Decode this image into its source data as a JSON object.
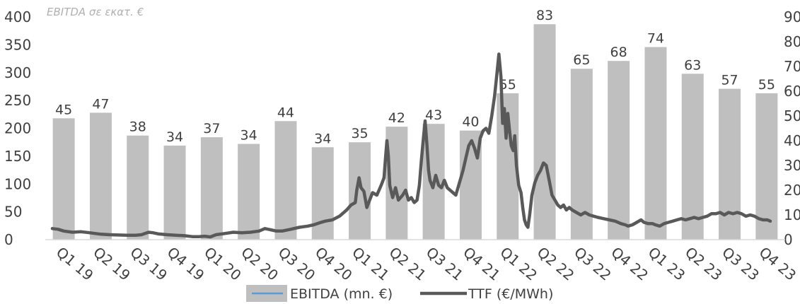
{
  "chart_data": {
    "type": "bar+line",
    "note": "EBITDA σε εκατ. €",
    "categories": [
      "Q1 19",
      "Q2 19",
      "Q3 19",
      "Q4 19",
      "Q1 20",
      "Q2 20",
      "Q3 20",
      "Q4 20",
      "Q1 21",
      "Q2 21",
      "Q3 21",
      "Q4 21",
      "Q1 22",
      "Q2 22",
      "Q3 22",
      "Q4 22",
      "Q1 23",
      "Q2 23",
      "Q3 23",
      "Q4 23"
    ],
    "left_axis": {
      "min": 0,
      "max": 400,
      "ticks": [
        "0",
        "50",
        "100",
        "150",
        "200",
        "250",
        "300",
        "350",
        "400"
      ]
    },
    "right_axis": {
      "min": 0,
      "max": 90,
      "ticks": [
        "0",
        "10",
        "20",
        "30",
        "40",
        "50",
        "60",
        "70",
        "80",
        "90"
      ]
    },
    "series": [
      {
        "name": "EBITDA (mn. €)",
        "kind": "bar",
        "axis": "left",
        "values": [
          218,
          228,
          187,
          169,
          184,
          172,
          213,
          166,
          175,
          203,
          208,
          196,
          263,
          387,
          307,
          321,
          346,
          298,
          271,
          263
        ],
        "labels": [
          "45",
          "47",
          "38",
          "34",
          "37",
          "34",
          "44",
          "34",
          "35",
          "42",
          "43",
          "40",
          "55",
          "83",
          "65",
          "68",
          "74",
          "63",
          "57",
          "55"
        ],
        "color": "#bfbfbf"
      },
      {
        "name": "TTF (€/MWh)",
        "kind": "line",
        "axis": "right",
        "color": "#595959",
        "points": [
          [
            0.0,
            4.5
          ],
          [
            0.2,
            4.2
          ],
          [
            0.4,
            3.5
          ],
          [
            0.7,
            3.0
          ],
          [
            1.0,
            3.2
          ],
          [
            1.3,
            2.8
          ],
          [
            1.5,
            2.5
          ],
          [
            1.7,
            2.2
          ],
          [
            2.0,
            2.0
          ],
          [
            2.3,
            1.9
          ],
          [
            2.6,
            1.8
          ],
          [
            2.9,
            1.8
          ],
          [
            3.1,
            2.0
          ],
          [
            3.35,
            3.0
          ],
          [
            3.5,
            2.8
          ],
          [
            3.7,
            2.3
          ],
          [
            4.0,
            2.0
          ],
          [
            4.3,
            1.8
          ],
          [
            4.6,
            1.6
          ],
          [
            4.9,
            1.2
          ],
          [
            5.1,
            1.2
          ],
          [
            5.3,
            1.4
          ],
          [
            5.5,
            1.1
          ],
          [
            5.7,
            2.0
          ],
          [
            6.0,
            2.5
          ],
          [
            6.3,
            3.0
          ],
          [
            6.6,
            2.8
          ],
          [
            6.9,
            3.0
          ],
          [
            7.2,
            3.5
          ],
          [
            7.4,
            4.5
          ],
          [
            7.6,
            4.0
          ],
          [
            7.8,
            3.5
          ],
          [
            8.0,
            3.5
          ],
          [
            8.3,
            4.2
          ],
          [
            8.6,
            5.0
          ],
          [
            8.9,
            5.5
          ],
          [
            9.1,
            6.0
          ],
          [
            9.3,
            6.8
          ],
          [
            9.5,
            7.5
          ],
          [
            9.75,
            8.0
          ],
          [
            10.0,
            9.5
          ],
          [
            10.25,
            12.0
          ],
          [
            10.4,
            14.0
          ],
          [
            10.55,
            15.0
          ],
          [
            10.6,
            20.0
          ],
          [
            10.68,
            25.0
          ],
          [
            10.75,
            21.0
          ],
          [
            10.85,
            19.5
          ],
          [
            10.95,
            13.0
          ],
          [
            11.05,
            16.0
          ],
          [
            11.15,
            19.0
          ],
          [
            11.3,
            18.0
          ],
          [
            11.45,
            22.0
          ],
          [
            11.55,
            25.0
          ],
          [
            11.6,
            33.0
          ],
          [
            11.65,
            40.0
          ],
          [
            11.7,
            34.0
          ],
          [
            11.75,
            22.0
          ],
          [
            11.85,
            17.0
          ],
          [
            11.95,
            21.0
          ],
          [
            12.05,
            16.0
          ],
          [
            12.2,
            18.0
          ],
          [
            12.3,
            20.0
          ],
          [
            12.4,
            16.0
          ],
          [
            12.5,
            17.0
          ],
          [
            12.6,
            15.0
          ],
          [
            12.7,
            16.0
          ],
          [
            12.78,
            22.0
          ],
          [
            12.85,
            32.0
          ],
          [
            12.92,
            41.0
          ],
          [
            12.98,
            48.0
          ],
          [
            13.04,
            39.0
          ],
          [
            13.1,
            28.0
          ],
          [
            13.15,
            24.0
          ],
          [
            13.25,
            21.0
          ],
          [
            13.35,
            26.0
          ],
          [
            13.45,
            22.0
          ],
          [
            13.55,
            21.0
          ],
          [
            13.65,
            24.0
          ],
          [
            13.75,
            21.0
          ],
          [
            13.85,
            20.0
          ],
          [
            13.95,
            19.0
          ],
          [
            14.05,
            18.0
          ],
          [
            14.15,
            22.0
          ],
          [
            14.3,
            28.0
          ],
          [
            14.4,
            33.0
          ],
          [
            14.5,
            38.0
          ],
          [
            14.6,
            40.0
          ],
          [
            14.7,
            37.0
          ],
          [
            14.8,
            33.0
          ],
          [
            14.9,
            41.0
          ],
          [
            15.0,
            44.0
          ],
          [
            15.1,
            45.0
          ],
          [
            15.2,
            43.0
          ],
          [
            15.3,
            50.0
          ],
          [
            15.4,
            58.0
          ],
          [
            15.48,
            67.0
          ],
          [
            15.55,
            75.0
          ],
          [
            15.62,
            66.0
          ],
          [
            15.68,
            47.0
          ],
          [
            15.74,
            53.0
          ],
          [
            15.8,
            41.0
          ],
          [
            15.86,
            51.0
          ],
          [
            15.92,
            44.0
          ],
          [
            15.98,
            38.0
          ],
          [
            16.05,
            36.0
          ],
          [
            16.1,
            42.0
          ],
          [
            16.16,
            30.0
          ],
          [
            16.24,
            22.0
          ],
          [
            16.32,
            19.0
          ],
          [
            16.38,
            13.0
          ],
          [
            16.44,
            8.0
          ],
          [
            16.5,
            6.0
          ],
          [
            16.56,
            5.0
          ],
          [
            16.62,
            10.0
          ],
          [
            16.7,
            18.0
          ],
          [
            16.8,
            23.0
          ],
          [
            16.9,
            26.0
          ],
          [
            17.0,
            28.0
          ],
          [
            17.1,
            31.0
          ],
          [
            17.2,
            30.0
          ],
          [
            17.3,
            24.0
          ],
          [
            17.4,
            18.0
          ],
          [
            17.5,
            16.0
          ],
          [
            17.6,
            14.0
          ],
          [
            17.7,
            13.0
          ],
          [
            17.8,
            14.0
          ],
          [
            17.9,
            12.0
          ],
          [
            18.0,
            13.0
          ],
          [
            18.1,
            12.0
          ],
          [
            18.25,
            11.0
          ],
          [
            18.4,
            10.0
          ],
          [
            18.55,
            11.0
          ],
          [
            18.7,
            10.0
          ],
          [
            18.85,
            9.5
          ],
          [
            19.0,
            9.0
          ],
          [
            19.2,
            8.5
          ],
          [
            19.4,
            8.0
          ],
          [
            19.6,
            7.5
          ],
          [
            19.8,
            6.5
          ],
          [
            19.95,
            6.0
          ],
          [
            20.05,
            5.5
          ],
          [
            20.2,
            6.0
          ],
          [
            20.35,
            7.0
          ],
          [
            20.5,
            8.0
          ],
          [
            20.6,
            7.0
          ],
          [
            20.75,
            6.5
          ],
          [
            20.9,
            6.5
          ],
          [
            21.0,
            6.0
          ],
          [
            21.15,
            5.5
          ],
          [
            21.3,
            6.5
          ],
          [
            21.45,
            7.0
          ],
          [
            21.6,
            7.5
          ],
          [
            21.75,
            8.0
          ],
          [
            21.9,
            8.5
          ],
          [
            22.05,
            8.0
          ],
          [
            22.2,
            8.5
          ],
          [
            22.35,
            9.0
          ],
          [
            22.5,
            8.5
          ],
          [
            22.65,
            9.0
          ],
          [
            22.8,
            9.5
          ],
          [
            22.95,
            10.5
          ],
          [
            23.1,
            10.5
          ],
          [
            23.25,
            11.0
          ],
          [
            23.4,
            10.0
          ],
          [
            23.55,
            11.0
          ],
          [
            23.7,
            10.5
          ],
          [
            23.85,
            11.0
          ],
          [
            24.0,
            10.5
          ],
          [
            24.15,
            9.5
          ],
          [
            24.3,
            10.0
          ],
          [
            24.45,
            9.5
          ],
          [
            24.6,
            8.5
          ],
          [
            24.75,
            8.0
          ],
          [
            24.9,
            8.0
          ],
          [
            25.0,
            7.5
          ]
        ]
      }
    ],
    "legend": {
      "position": "bottom",
      "items": [
        {
          "label": "EBITDA (mn. €)",
          "marker": "bar",
          "color": "#bfbfbf",
          "border": "#5b9bd5"
        },
        {
          "label": "TTF (€/MWh)",
          "marker": "line",
          "color": "#595959"
        }
      ]
    }
  }
}
